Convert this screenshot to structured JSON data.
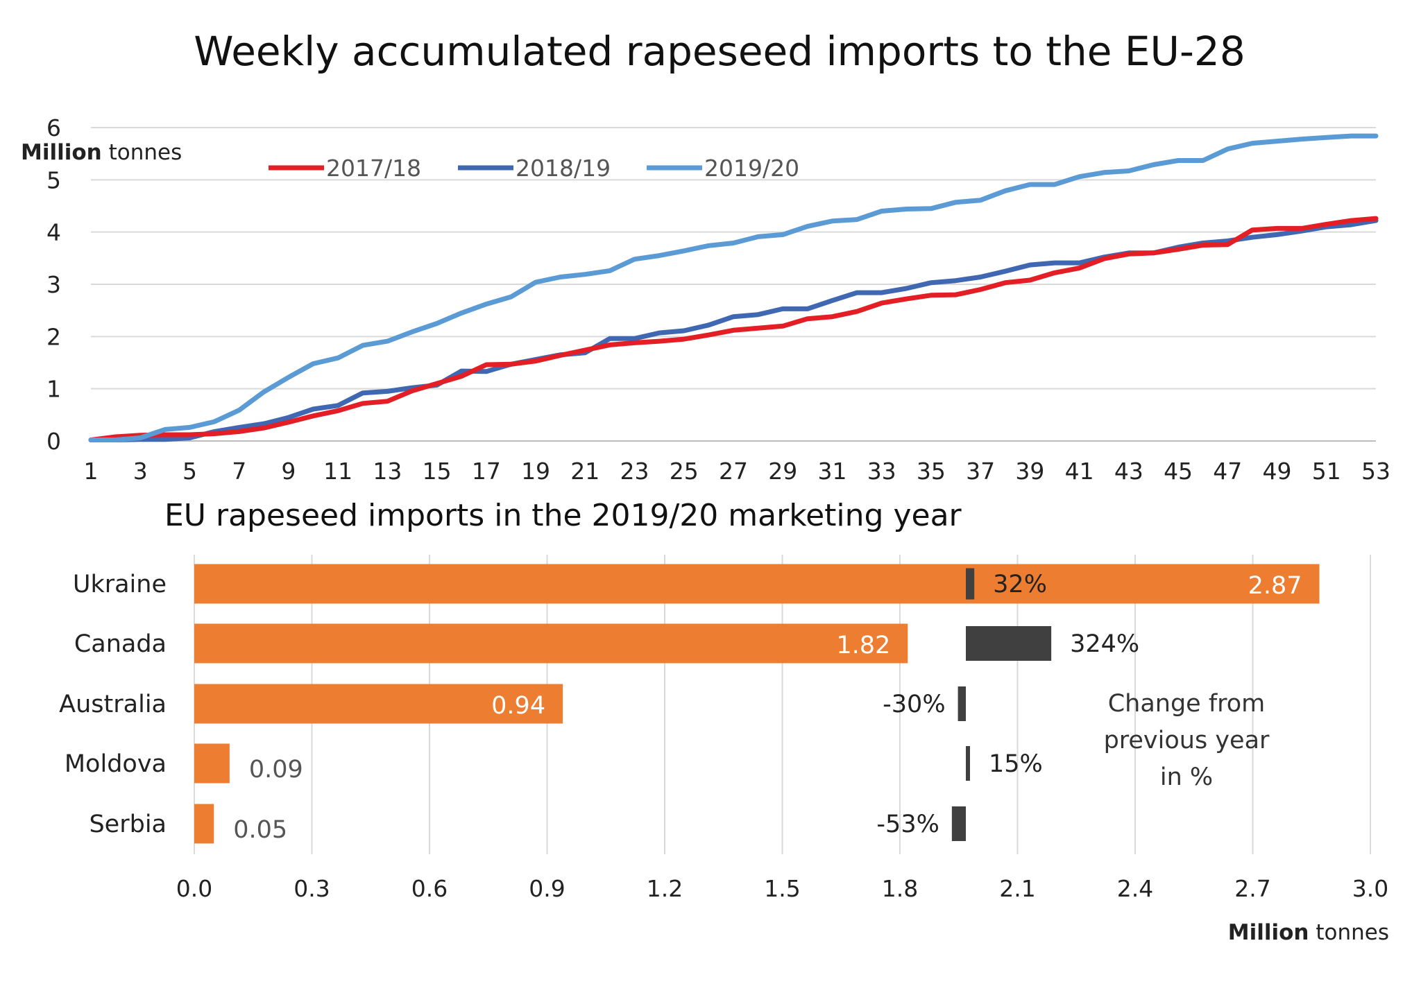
{
  "chart_data": [
    {
      "type": "line",
      "title": "Weekly accumulated rapeseed imports to the EU-28",
      "ylabel_bold": "Million",
      "ylabel_rest": " tonnes",
      "xlim": [
        1,
        53
      ],
      "ylim": [
        0,
        6
      ],
      "yticks": [
        "0",
        "1",
        "2",
        "3",
        "4",
        "5",
        "6"
      ],
      "xticks": [
        "1",
        "3",
        "5",
        "7",
        "9",
        "11",
        "13",
        "15",
        "17",
        "19",
        "21",
        "23",
        "25",
        "27",
        "29",
        "31",
        "33",
        "35",
        "37",
        "39",
        "41",
        "43",
        "45",
        "47",
        "49",
        "51",
        "53"
      ],
      "grid": true,
      "legend": "top-left",
      "series": [
        {
          "name": "2017/18",
          "color": "#e31e24",
          "values": [
            0.02,
            0.08,
            0.11,
            0.12,
            0.12,
            0.14,
            0.18,
            0.25,
            0.36,
            0.48,
            0.58,
            0.72,
            0.76,
            0.96,
            1.1,
            1.24,
            1.46,
            1.47,
            1.53,
            1.64,
            1.74,
            1.84,
            1.88,
            1.91,
            1.95,
            2.03,
            2.12,
            2.16,
            2.2,
            2.34,
            2.38,
            2.48,
            2.64,
            2.72,
            2.79,
            2.8,
            2.9,
            3.03,
            3.08,
            3.22,
            3.31,
            3.49,
            3.58,
            3.6,
            3.67,
            3.75,
            3.76,
            4.04,
            4.07,
            4.07,
            4.15,
            4.22,
            4.26
          ]
        },
        {
          "name": "2018/19",
          "color": "#4067b1",
          "values": [
            0.02,
            0.02,
            0.03,
            0.03,
            0.06,
            0.18,
            0.26,
            0.33,
            0.45,
            0.61,
            0.68,
            0.92,
            0.95,
            1.02,
            1.07,
            1.34,
            1.33,
            1.47,
            1.56,
            1.65,
            1.69,
            1.96,
            1.96,
            2.07,
            2.11,
            2.22,
            2.38,
            2.42,
            2.53,
            2.53,
            2.69,
            2.84,
            2.84,
            2.92,
            3.03,
            3.07,
            3.14,
            3.25,
            3.37,
            3.41,
            3.41,
            3.52,
            3.6,
            3.6,
            3.71,
            3.79,
            3.83,
            3.9,
            3.95,
            4.02,
            4.1,
            4.14,
            4.22
          ]
        },
        {
          "name": "2019/20",
          "color": "#5b9bd5",
          "values": [
            0.02,
            0.02,
            0.06,
            0.22,
            0.26,
            0.37,
            0.59,
            0.94,
            1.22,
            1.48,
            1.59,
            1.83,
            1.91,
            2.09,
            2.25,
            2.45,
            2.62,
            2.76,
            3.04,
            3.14,
            3.19,
            3.26,
            3.48,
            3.55,
            3.64,
            3.74,
            3.79,
            3.91,
            3.95,
            4.11,
            4.21,
            4.24,
            4.4,
            4.44,
            4.45,
            4.57,
            4.61,
            4.79,
            4.91,
            4.91,
            5.06,
            5.14,
            5.17,
            5.29,
            5.37,
            5.37,
            5.59,
            5.7,
            5.74,
            5.78,
            5.81,
            5.84,
            5.84
          ]
        }
      ]
    },
    {
      "type": "bar",
      "orientation": "horizontal",
      "title": "EU rapeseed imports in the 2019/20 marketing year",
      "xlabel_bold": "Million",
      "xlabel_rest": " tonnes",
      "xlim": [
        0,
        3.0
      ],
      "xticks": [
        "0.0",
        "0.3",
        "0.6",
        "0.9",
        "1.2",
        "1.5",
        "1.8",
        "2.1",
        "2.4",
        "2.7",
        "3.0"
      ],
      "grid": true,
      "bar_color": "#ed7d31",
      "categories": [
        "Ukraine",
        "Canada",
        "Australia",
        "Moldova",
        "Serbia"
      ],
      "values": [
        2.87,
        1.82,
        0.94,
        0.09,
        0.05
      ],
      "value_labels": [
        "2.87",
        "1.82",
        "0.94",
        "0.09",
        "0.05"
      ],
      "change": {
        "color": "#404040",
        "values": [
          32,
          324,
          -30,
          15,
          -53
        ],
        "labels": [
          "32%",
          "324%",
          "-30%",
          "15%",
          "-53%"
        ],
        "note_lines": [
          "Change from",
          "previous year",
          "in %"
        ]
      }
    }
  ]
}
